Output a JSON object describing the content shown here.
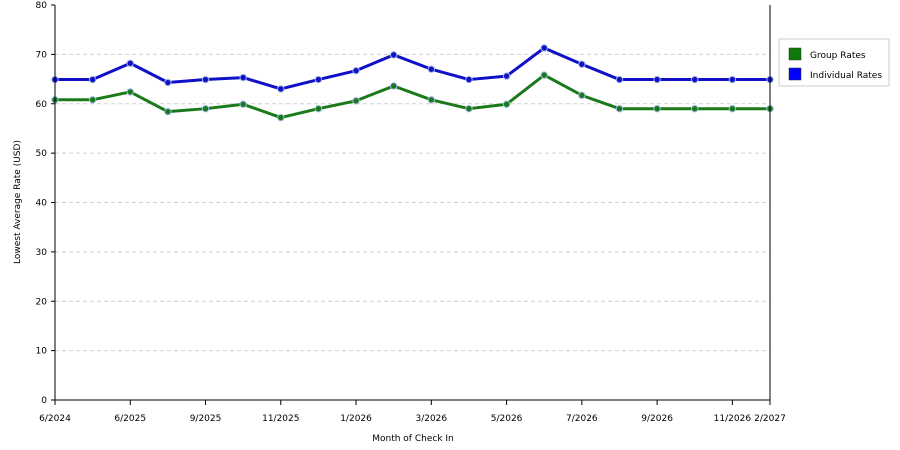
{
  "chart_data": {
    "type": "line",
    "title": "",
    "xlabel": "Month of Check In",
    "ylabel": "Lowest Average Rate (USD)",
    "ylim": [
      0,
      80
    ],
    "yticks": [
      0,
      10,
      20,
      30,
      40,
      50,
      60,
      70,
      80
    ],
    "x_tick_labels": [
      "6/2024",
      "6/2025",
      "9/2025",
      "11/2025",
      "1/2026",
      "3/2026",
      "5/2026",
      "7/2026",
      "9/2026",
      "11/2026",
      "2/2027"
    ],
    "grid": true,
    "legend_position": "right",
    "series": [
      {
        "name": "Group Rates",
        "color": "#1a7a1a",
        "swatch_color": "#0a7a0a",
        "values": [
          60.8,
          60.8,
          62.4,
          58.4,
          59.0,
          59.9,
          57.2,
          59.0,
          60.6,
          63.6,
          60.8,
          59.0,
          59.9,
          65.8,
          61.7,
          59.0,
          59.0,
          59.0,
          59.0,
          59.0
        ]
      },
      {
        "name": "Individual Rates",
        "color": "#1010c8",
        "swatch_color": "#0000ff",
        "values": [
          64.9,
          64.9,
          68.2,
          64.3,
          64.9,
          65.3,
          63.0,
          64.9,
          66.7,
          69.9,
          67.0,
          64.9,
          65.6,
          71.3,
          68.0,
          64.9,
          64.9,
          64.9,
          64.9,
          64.9
        ]
      }
    ]
  }
}
